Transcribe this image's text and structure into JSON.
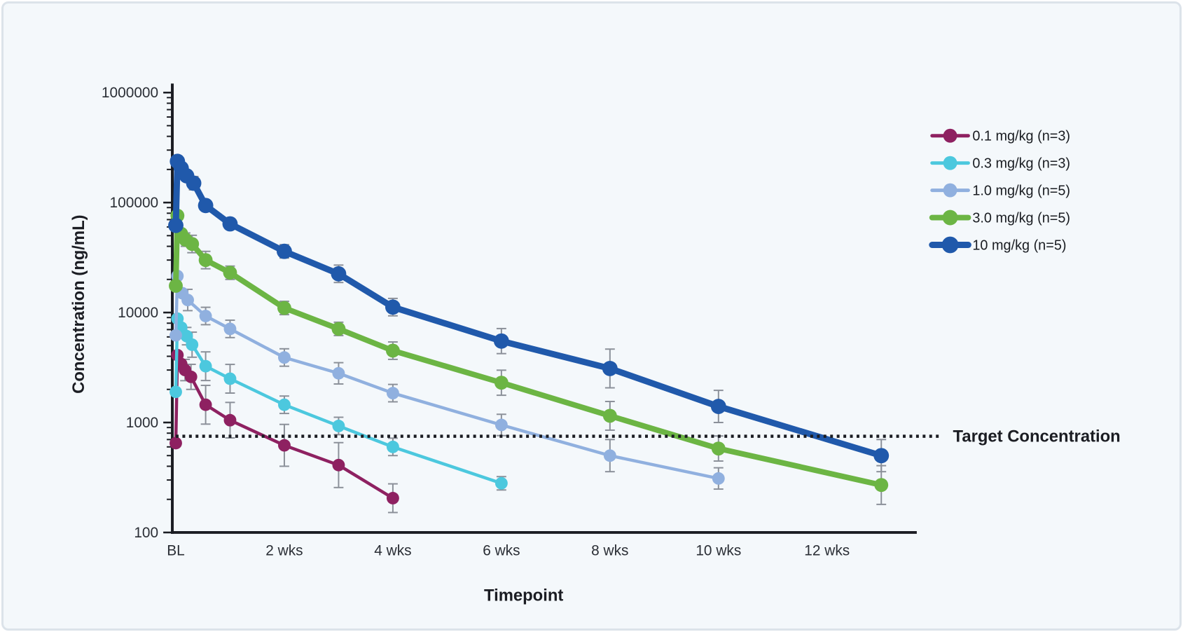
{
  "frame": {
    "background": "#f4f8fb",
    "border_color": "#dce3ea"
  },
  "chart_data": {
    "type": "line",
    "title": "",
    "xlabel": "Timepoint",
    "ylabel": "Concentration (ng/mL)",
    "x_unit": "weeks",
    "y_scale": "log",
    "ylim": [
      100,
      1000000
    ],
    "xlim_weeks": [
      0,
      13.6
    ],
    "grid": false,
    "legend_position": "top-right",
    "y_ticks": [
      {
        "label": "1000000",
        "value": 1000000
      },
      {
        "label": "100000",
        "value": 100000
      },
      {
        "label": "10000",
        "value": 10000
      },
      {
        "label": "1000",
        "value": 1000
      },
      {
        "label": "100",
        "value": 100
      }
    ],
    "x_ticks": [
      {
        "label": "BL",
        "t": 0
      },
      {
        "label": "2 wks",
        "t": 2
      },
      {
        "label": "4 wks",
        "t": 4
      },
      {
        "label": "6 wks",
        "t": 6
      },
      {
        "label": "8 wks",
        "t": 8
      },
      {
        "label": "10 wks",
        "t": 10
      },
      {
        "label": "12 wks",
        "t": 12
      }
    ],
    "target_line": {
      "label": "Target Concentration",
      "value": 750,
      "style": "dotted",
      "color": "#1b1d23"
    },
    "error_bar_color": "#8b9099",
    "series": [
      {
        "name": "0.1 mg/kg (n=3)",
        "color": "#8e2161",
        "line_width": 4.5,
        "marker_radius": 9,
        "points": [
          [
            0,
            650,
            0
          ],
          [
            0.03,
            4100,
            0
          ],
          [
            0.1,
            3400,
            0
          ],
          [
            0.17,
            3000,
            1.25
          ],
          [
            0.28,
            2600,
            1.3
          ],
          [
            0.55,
            1450,
            1.5
          ],
          [
            1,
            1050,
            1.45
          ],
          [
            2,
            620,
            1.55
          ],
          [
            3,
            410,
            1.6
          ],
          [
            4,
            205,
            1.35
          ]
        ]
      },
      {
        "name": "0.3 mg/kg (n=3)",
        "color": "#4cc8de",
        "line_width": 4.5,
        "marker_radius": 9,
        "points": [
          [
            0,
            1900,
            0
          ],
          [
            0.03,
            8800,
            0
          ],
          [
            0.1,
            7300,
            0
          ],
          [
            0.2,
            6100,
            1.2
          ],
          [
            0.3,
            5100,
            1.3
          ],
          [
            0.55,
            3250,
            1.35
          ],
          [
            1,
            2500,
            1.35
          ],
          [
            2,
            1450,
            1.2
          ],
          [
            3,
            930,
            1.2
          ],
          [
            4,
            600,
            1.2
          ],
          [
            6,
            280,
            1.15
          ]
        ]
      },
      {
        "name": "1.0 mg/kg (n=5)",
        "color": "#90b0df",
        "line_width": 4.5,
        "marker_radius": 9,
        "points": [
          [
            0,
            6200,
            0
          ],
          [
            0.03,
            21500,
            0
          ],
          [
            0.12,
            15000,
            0
          ],
          [
            0.22,
            13000,
            1.25
          ],
          [
            0.55,
            9300,
            1.2
          ],
          [
            1,
            7100,
            1.2
          ],
          [
            2,
            3900,
            1.2
          ],
          [
            3,
            2800,
            1.25
          ],
          [
            4,
            1850,
            1.2
          ],
          [
            6,
            950,
            1.25
          ],
          [
            8,
            500,
            1.4
          ],
          [
            10,
            310,
            1.25
          ]
        ]
      },
      {
        "name": "3.0 mg/kg (n=5)",
        "color": "#6cb544",
        "line_width": 8,
        "marker_radius": 10,
        "points": [
          [
            0,
            17500,
            0
          ],
          [
            0.03,
            76000,
            0
          ],
          [
            0.1,
            52000,
            0
          ],
          [
            0.18,
            46000,
            1.15
          ],
          [
            0.3,
            42000,
            1.2
          ],
          [
            0.55,
            30000,
            1.2
          ],
          [
            1,
            23000,
            1.15
          ],
          [
            2,
            11000,
            1.15
          ],
          [
            3,
            7100,
            1.15
          ],
          [
            4,
            4500,
            1.2
          ],
          [
            6,
            2300,
            1.3
          ],
          [
            8,
            1150,
            1.35
          ],
          [
            10,
            580,
            1.3
          ],
          [
            13,
            270,
            1.5
          ]
        ]
      },
      {
        "name": "10 mg/kg (n=5)",
        "color": "#2059ab",
        "line_width": 9,
        "marker_radius": 11,
        "points": [
          [
            0,
            62000,
            0
          ],
          [
            0.03,
            237000,
            0
          ],
          [
            0.1,
            205000,
            0
          ],
          [
            0.2,
            175000,
            0
          ],
          [
            0.33,
            150000,
            1.15
          ],
          [
            0.55,
            94000,
            1.1
          ],
          [
            1,
            64000,
            1.1
          ],
          [
            2,
            36000,
            1.15
          ],
          [
            3,
            22500,
            1.2
          ],
          [
            4,
            11200,
            1.2
          ],
          [
            6,
            5500,
            1.3
          ],
          [
            8,
            3100,
            1.5
          ],
          [
            10,
            1400,
            1.4
          ],
          [
            13,
            500,
            1.4
          ]
        ]
      }
    ],
    "styles": {
      "axis_color": "#1b1d23",
      "tick_label_color": "#2a2e35",
      "tick_label_size": 21,
      "axis_title_size": 24,
      "legend_font_size": 20,
      "target_font_size": 24
    }
  }
}
